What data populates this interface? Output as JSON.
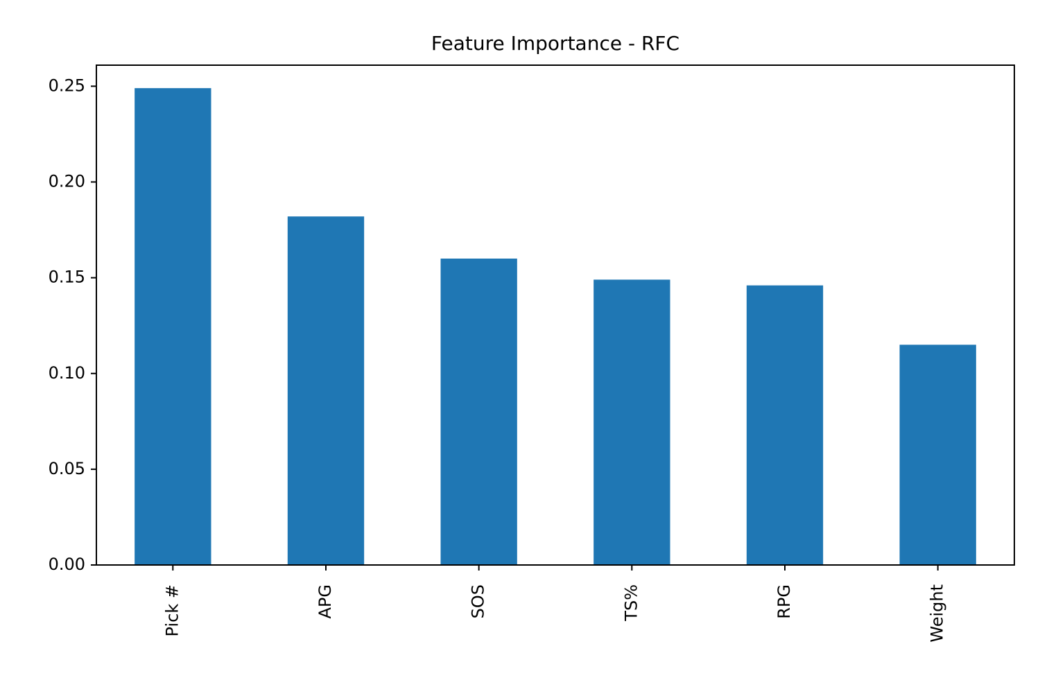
{
  "chart_data": {
    "type": "bar",
    "title": "Feature Importance - RFC",
    "xlabel": "",
    "ylabel": "",
    "categories": [
      "Pick #",
      "APG",
      "SOS",
      "TS%",
      "RPG",
      "Weight"
    ],
    "values": [
      0.249,
      0.182,
      0.16,
      0.149,
      0.146,
      0.115
    ],
    "ylim": [
      0,
      0.261
    ],
    "yticks": [
      0.0,
      0.05,
      0.1,
      0.15,
      0.2,
      0.25
    ],
    "ytick_labels": [
      "0.00",
      "0.05",
      "0.10",
      "0.15",
      "0.20",
      "0.25"
    ],
    "grid": false,
    "legend": "none",
    "bar_color": "#1f77b4"
  }
}
